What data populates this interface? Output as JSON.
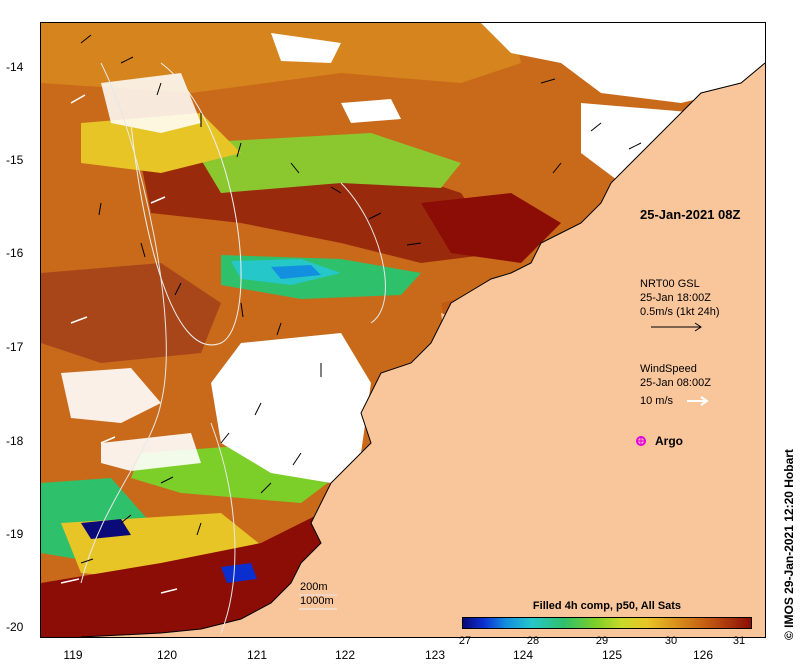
{
  "map": {
    "lat_ticks": [
      "-14",
      "-15",
      "-16",
      "-17",
      "-18",
      "-19",
      "-20"
    ],
    "lon_ticks": [
      "119",
      "120",
      "121",
      "122",
      "123",
      "124",
      "125",
      "126"
    ],
    "title_date": "25-Jan-2021 08Z",
    "current_legend": {
      "line1": "NRT00 GSL",
      "line2": "25-Jan 18:00Z",
      "line3": "0.5m/s (1kt 24h)"
    },
    "wind_legend": {
      "line1": "WindSpeed",
      "line2": "25-Jan 08:00Z",
      "line3": "10 m/s"
    },
    "argo_label": "Argo",
    "credit": "© IMOS 29-Jan-2021 12:20 Hobart",
    "depth_labels": [
      "200m",
      "1000m"
    ],
    "colorbar": {
      "title": "Filled 4h comp, p50, All Sats",
      "ticks": [
        "27",
        "28",
        "29",
        "30",
        "31"
      ]
    },
    "colors": {
      "land": "#f9c59b",
      "no_data": "#ffffff",
      "argo": "#e600e6"
    }
  }
}
